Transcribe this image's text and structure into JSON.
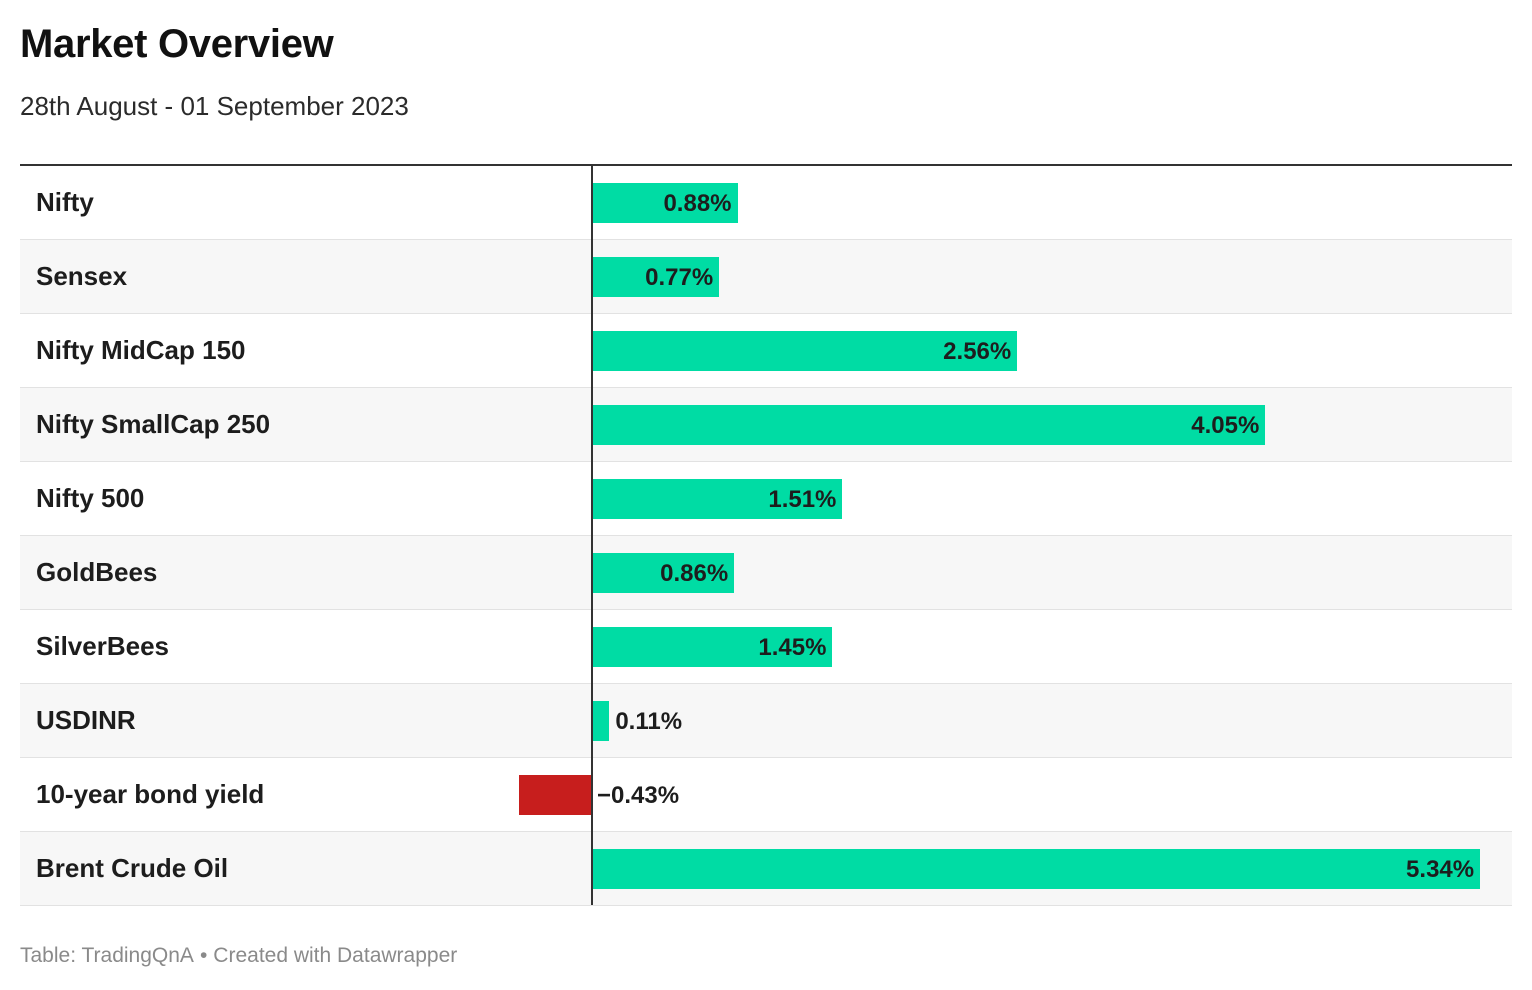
{
  "title": "Market Overview",
  "subtitle": "28th August - 01 September 2023",
  "colors": {
    "positive": "#00dca4",
    "negative": "#c71e1d",
    "axis": "#333333",
    "row_alt": "#f7f7f7"
  },
  "footer": {
    "source": "Table: TradingQnA",
    "separator": "•",
    "credit": "Created with Datawrapper"
  },
  "chart_data": {
    "type": "table",
    "value_unit": "%",
    "rows": [
      {
        "label": "Nifty",
        "value": 0.88,
        "display": "0.88%"
      },
      {
        "label": "Sensex",
        "value": 0.77,
        "display": "0.77%"
      },
      {
        "label": "Nifty MidCap 150",
        "value": 2.56,
        "display": "2.56%"
      },
      {
        "label": "Nifty SmallCap 250",
        "value": 4.05,
        "display": "4.05%"
      },
      {
        "label": "Nifty 500",
        "value": 1.51,
        "display": "1.51%"
      },
      {
        "label": "GoldBees",
        "value": 0.86,
        "display": "0.86%"
      },
      {
        "label": "SilverBees",
        "value": 1.45,
        "display": "1.45%"
      },
      {
        "label": "USDINR",
        "value": 0.11,
        "display": "0.11%"
      },
      {
        "label": "10-year bond yield",
        "value": -0.43,
        "display": "−0.43%"
      },
      {
        "label": "Brent Crude Oil",
        "value": 5.34,
        "display": "5.34%"
      }
    ]
  }
}
